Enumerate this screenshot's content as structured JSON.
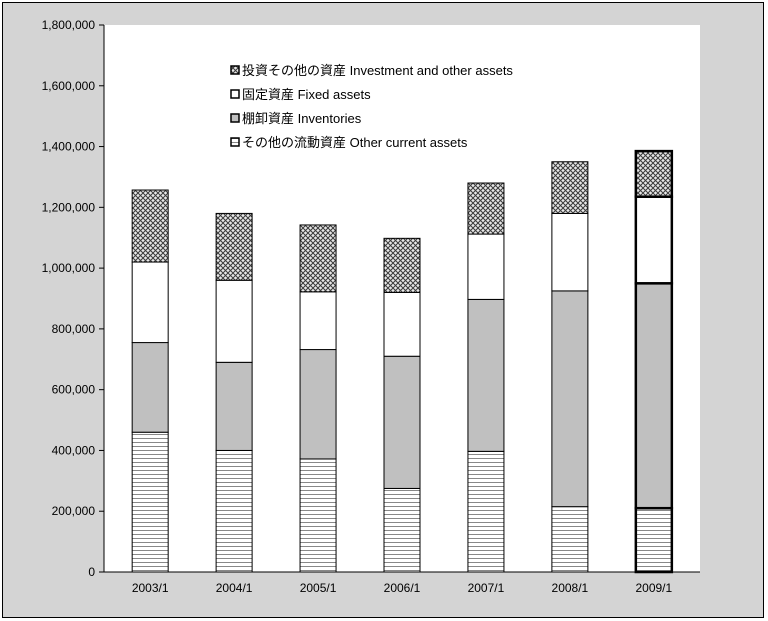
{
  "chart_data": {
    "type": "bar",
    "stacked": true,
    "title": "",
    "xlabel": "",
    "ylabel": "",
    "ylim": [
      0,
      1800000
    ],
    "yticks": [
      "0",
      "200,000",
      "400,000",
      "600,000",
      "800,000",
      "1,000,000",
      "1,200,000",
      "1,400,000",
      "1,600,000",
      "1,800,000"
    ],
    "categories": [
      "2003/1",
      "2004/1",
      "2005/1",
      "2006/1",
      "2007/1",
      "2008/1",
      "2009/1"
    ],
    "series": [
      {
        "name": "その他の流動資産 Other current assets",
        "pattern": "horizontal-lines",
        "values": [
          460000,
          400000,
          372000,
          275000,
          397000,
          215000,
          210000
        ]
      },
      {
        "name": "棚卸資産 Inventories",
        "pattern": "gray-fill",
        "color": "#c0c0c0",
        "values": [
          295000,
          290000,
          360000,
          435000,
          500000,
          710000,
          740000
        ]
      },
      {
        "name": "固定資産 Fixed assets",
        "pattern": "white-fill",
        "color": "#ffffff",
        "values": [
          265000,
          270000,
          190000,
          210000,
          215000,
          255000,
          285000
        ]
      },
      {
        "name": "投資その他の資産 Investment and other assets",
        "pattern": "crosshatch",
        "values": [
          237000,
          220000,
          220000,
          178000,
          168000,
          170000,
          150000
        ]
      }
    ],
    "legend_order": [
      3,
      2,
      1,
      0
    ],
    "legend_position": "top-center",
    "highlight_category": "2009/1",
    "grid": false
  }
}
